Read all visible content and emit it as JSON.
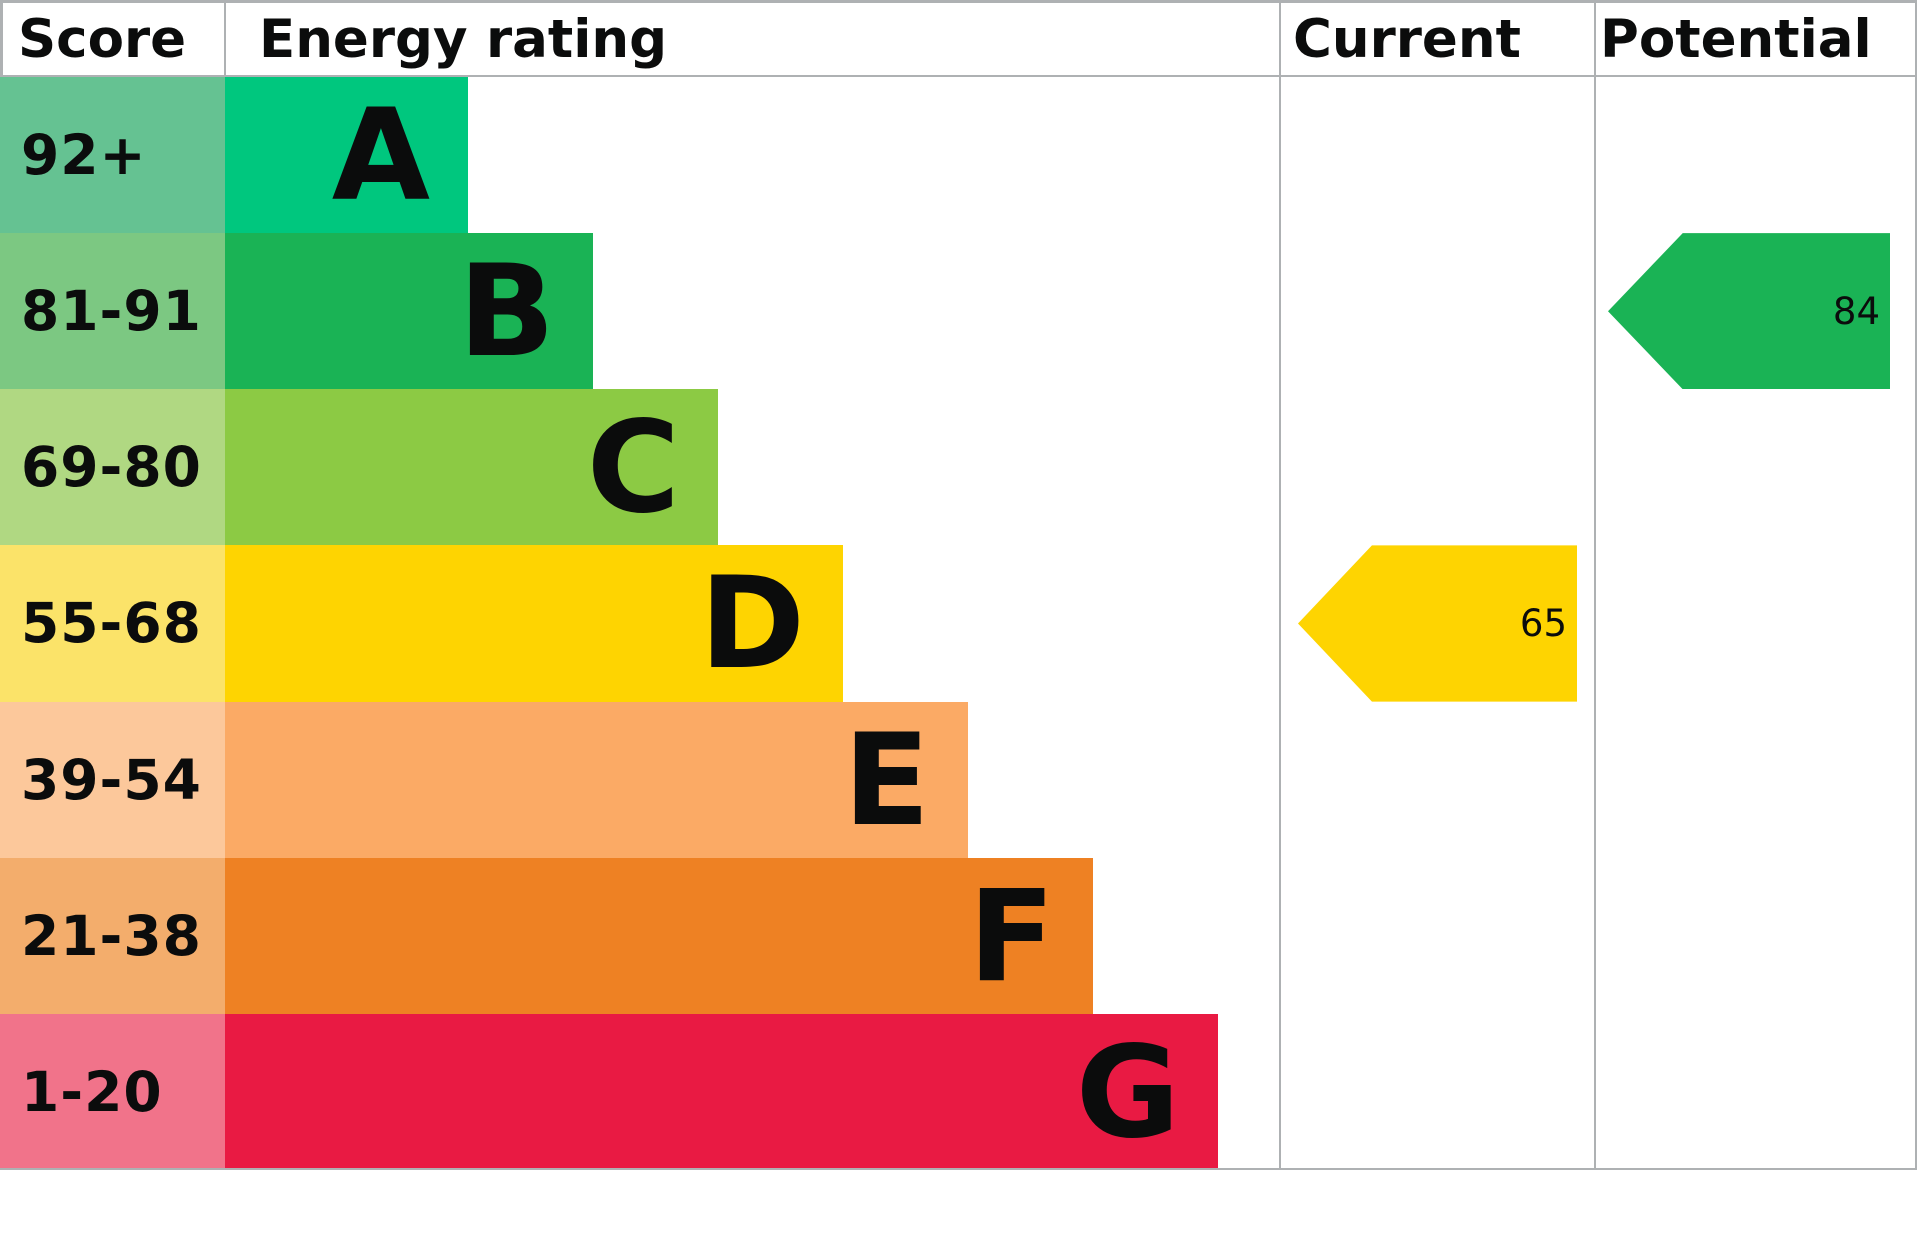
{
  "header": {
    "score": "Score",
    "energy_rating": "Energy rating",
    "current": "Current",
    "potential": "Potential"
  },
  "chart_data": {
    "type": "bar",
    "title": "Energy efficiency rating chart (EPC)",
    "orientation": "horizontal",
    "categories": [
      "A",
      "B",
      "C",
      "D",
      "E",
      "F",
      "G"
    ],
    "bands": [
      {
        "letter": "A",
        "score_range": "92+",
        "bar_color": "#00c77e",
        "score_bg": "#65c292"
      },
      {
        "letter": "B",
        "score_range": "81-91",
        "bar_color": "#1ab355",
        "score_bg": "#7cc882"
      },
      {
        "letter": "C",
        "score_range": "69-80",
        "bar_color": "#8cca44",
        "score_bg": "#b0d882"
      },
      {
        "letter": "D",
        "score_range": "55-68",
        "bar_color": "#fed401",
        "score_bg": "#fbe369"
      },
      {
        "letter": "E",
        "score_range": "39-54",
        "bar_color": "#fbaa65",
        "score_bg": "#fcc89b"
      },
      {
        "letter": "F",
        "score_range": "21-38",
        "bar_color": "#ee8123",
        "score_bg": "#f3ad6c"
      },
      {
        "letter": "G",
        "score_range": "1-20",
        "bar_color": "#e91a43",
        "score_bg": "#f1738a"
      }
    ],
    "markers": [
      {
        "label": "Current",
        "value": 65,
        "band": "D",
        "color": "#fed401"
      },
      {
        "label": "Potential",
        "value": 84,
        "band": "B",
        "color": "#1ab355"
      }
    ],
    "grid": "table borders only",
    "legend_position": "none"
  }
}
